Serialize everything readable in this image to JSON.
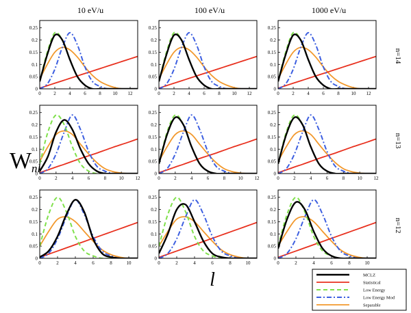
{
  "chart_data": {
    "type": "line",
    "ylabel": "W",
    "ylabel_subscript": "nl",
    "xlabel": "l",
    "columns": [
      "10 eV/u",
      "100 eV/u",
      "1000 eV/u"
    ],
    "rows": [
      "n=14",
      "n=13",
      "n=12"
    ],
    "ylim": [
      0,
      0.28
    ],
    "yticks": [
      "0",
      "0.05",
      "0.1",
      "0.15",
      "0.2",
      "0.25"
    ],
    "xlim_by_row": [
      [
        0,
        13
      ],
      [
        0,
        12
      ],
      [
        0,
        11
      ]
    ],
    "xticks_by_row": [
      [
        "0",
        "2",
        "4",
        "6",
        "8",
        "10",
        "12"
      ],
      [
        "0",
        "2",
        "4",
        "6",
        "8",
        "10",
        "12"
      ],
      [
        "0",
        "2",
        "4",
        "6",
        "8",
        "10"
      ]
    ],
    "legend": [
      "MCLZ",
      "Statistical",
      "Low Energy",
      "Low Energy Mod",
      "Separable"
    ],
    "series_colors": {
      "MCLZ": "#000000",
      "Statistical": "#e8301e",
      "Low Energy": "#7fe04b",
      "Low Energy Mod": "#3d5fe0",
      "Separable": "#f2982c"
    },
    "panels": [
      {
        "row": "n=14",
        "column": "10 eV/u",
        "MCLZ": [
          0.03,
          0.14,
          0.22,
          0.2,
          0.12,
          0.05,
          0.015,
          0,
          0,
          0,
          0,
          0,
          0,
          0
        ],
        "Statistical": [
          0.003,
          0.013,
          0.023,
          0.033,
          0.043,
          0.053,
          0.063,
          0.073,
          0.083,
          0.093,
          0.103,
          0.113,
          0.123,
          0.133
        ],
        "Low Energy": [
          0.03,
          0.15,
          0.23,
          0.2,
          0.12,
          0.05,
          0.015,
          0,
          0,
          0,
          0,
          0,
          0,
          0
        ],
        "Low Energy Mod": [
          0,
          0.02,
          0.08,
          0.17,
          0.23,
          0.18,
          0.09,
          0.03,
          0.01,
          0,
          0,
          0,
          0,
          0
        ],
        "Separable": [
          0.04,
          0.1,
          0.15,
          0.17,
          0.16,
          0.13,
          0.09,
          0.055,
          0.03,
          0.015,
          0.005,
          0,
          0,
          0
        ]
      },
      {
        "row": "n=14",
        "column": "100 eV/u",
        "MCLZ": [
          0.03,
          0.14,
          0.22,
          0.2,
          0.12,
          0.05,
          0.015,
          0,
          0,
          0,
          0,
          0,
          0,
          0
        ],
        "Statistical": [
          0.003,
          0.013,
          0.023,
          0.033,
          0.043,
          0.053,
          0.063,
          0.073,
          0.083,
          0.093,
          0.103,
          0.113,
          0.123,
          0.133
        ],
        "Low Energy": [
          0.03,
          0.15,
          0.23,
          0.2,
          0.12,
          0.05,
          0.015,
          0,
          0,
          0,
          0,
          0,
          0,
          0
        ],
        "Low Energy Mod": [
          0,
          0.02,
          0.08,
          0.17,
          0.23,
          0.18,
          0.09,
          0.03,
          0.01,
          0,
          0,
          0,
          0,
          0
        ],
        "Separable": [
          0.04,
          0.1,
          0.15,
          0.17,
          0.16,
          0.13,
          0.09,
          0.055,
          0.03,
          0.015,
          0.005,
          0,
          0,
          0
        ]
      },
      {
        "row": "n=14",
        "column": "1000 eV/u",
        "MCLZ": [
          0.03,
          0.14,
          0.22,
          0.2,
          0.12,
          0.05,
          0.015,
          0,
          0,
          0,
          0,
          0,
          0,
          0
        ],
        "Statistical": [
          0.003,
          0.013,
          0.023,
          0.033,
          0.043,
          0.053,
          0.063,
          0.073,
          0.083,
          0.093,
          0.103,
          0.113,
          0.123,
          0.133
        ],
        "Low Energy": [
          0.03,
          0.15,
          0.23,
          0.2,
          0.12,
          0.05,
          0.015,
          0,
          0,
          0,
          0,
          0,
          0,
          0
        ],
        "Low Energy Mod": [
          0,
          0.02,
          0.08,
          0.17,
          0.23,
          0.18,
          0.09,
          0.03,
          0.01,
          0,
          0,
          0,
          0,
          0
        ],
        "Separable": [
          0.04,
          0.1,
          0.15,
          0.17,
          0.16,
          0.13,
          0.09,
          0.055,
          0.03,
          0.015,
          0.005,
          0,
          0,
          0
        ]
      },
      {
        "row": "n=13",
        "column": "10 eV/u",
        "MCLZ": [
          0.01,
          0.07,
          0.17,
          0.22,
          0.18,
          0.1,
          0.04,
          0.01,
          0,
          0,
          0,
          0,
          0
        ],
        "Statistical": [
          0.004,
          0.015,
          0.027,
          0.038,
          0.05,
          0.062,
          0.073,
          0.084,
          0.096,
          0.108,
          0.119,
          0.13,
          0.142
        ],
        "Low Energy": [
          0.04,
          0.17,
          0.24,
          0.2,
          0.11,
          0.04,
          0.01,
          0,
          0,
          0,
          0,
          0,
          0
        ],
        "Low Energy Mod": [
          0,
          0.02,
          0.08,
          0.17,
          0.24,
          0.18,
          0.09,
          0.03,
          0.01,
          0,
          0,
          0,
          0
        ],
        "Separable": [
          0.05,
          0.11,
          0.16,
          0.175,
          0.16,
          0.12,
          0.08,
          0.045,
          0.02,
          0.008,
          0.002,
          0,
          0
        ]
      },
      {
        "row": "n=13",
        "column": "100 eV/u",
        "MCLZ": [
          0.04,
          0.16,
          0.23,
          0.2,
          0.11,
          0.04,
          0.01,
          0,
          0,
          0,
          0,
          0,
          0
        ],
        "Statistical": [
          0.004,
          0.015,
          0.027,
          0.038,
          0.05,
          0.062,
          0.073,
          0.084,
          0.096,
          0.108,
          0.119,
          0.13,
          0.142
        ],
        "Low Energy": [
          0.04,
          0.17,
          0.24,
          0.2,
          0.11,
          0.04,
          0.01,
          0,
          0,
          0,
          0,
          0,
          0
        ],
        "Low Energy Mod": [
          0,
          0.02,
          0.08,
          0.17,
          0.24,
          0.18,
          0.09,
          0.03,
          0.01,
          0,
          0,
          0,
          0
        ],
        "Separable": [
          0.05,
          0.11,
          0.16,
          0.175,
          0.16,
          0.12,
          0.08,
          0.045,
          0.02,
          0.008,
          0.002,
          0,
          0
        ]
      },
      {
        "row": "n=13",
        "column": "1000 eV/u",
        "MCLZ": [
          0.04,
          0.16,
          0.23,
          0.2,
          0.11,
          0.04,
          0.01,
          0,
          0,
          0,
          0,
          0,
          0
        ],
        "Statistical": [
          0.004,
          0.015,
          0.027,
          0.038,
          0.05,
          0.062,
          0.073,
          0.084,
          0.096,
          0.108,
          0.119,
          0.13,
          0.142
        ],
        "Low Energy": [
          0.04,
          0.17,
          0.24,
          0.2,
          0.11,
          0.04,
          0.01,
          0,
          0,
          0,
          0,
          0,
          0
        ],
        "Low Energy Mod": [
          0,
          0.02,
          0.08,
          0.17,
          0.24,
          0.18,
          0.09,
          0.03,
          0.01,
          0,
          0,
          0,
          0
        ],
        "Separable": [
          0.05,
          0.11,
          0.16,
          0.175,
          0.16,
          0.12,
          0.08,
          0.045,
          0.02,
          0.008,
          0.002,
          0,
          0
        ]
      },
      {
        "row": "n=12",
        "column": "10 eV/u",
        "MCLZ": [
          0.005,
          0.03,
          0.09,
          0.18,
          0.24,
          0.19,
          0.08,
          0.02,
          0.005,
          0,
          0,
          0
        ],
        "Statistical": [
          0.004,
          0.017,
          0.03,
          0.043,
          0.056,
          0.069,
          0.082,
          0.095,
          0.108,
          0.121,
          0.134,
          0.147
        ],
        "Low Energy": [
          0.05,
          0.18,
          0.25,
          0.19,
          0.09,
          0.03,
          0.01,
          0,
          0,
          0,
          0,
          0
        ],
        "Low Energy Mod": [
          0,
          0.02,
          0.08,
          0.17,
          0.24,
          0.18,
          0.09,
          0.03,
          0.01,
          0,
          0,
          0
        ],
        "Separable": [
          0.05,
          0.11,
          0.16,
          0.17,
          0.15,
          0.11,
          0.07,
          0.035,
          0.015,
          0.005,
          0,
          0
        ]
      },
      {
        "row": "n=12",
        "column": "100 eV/u",
        "MCLZ": [
          0.02,
          0.1,
          0.2,
          0.22,
          0.15,
          0.07,
          0.02,
          0.005,
          0,
          0,
          0,
          0
        ],
        "Statistical": [
          0.004,
          0.017,
          0.03,
          0.043,
          0.056,
          0.069,
          0.082,
          0.095,
          0.108,
          0.121,
          0.134,
          0.147
        ],
        "Low Energy": [
          0.05,
          0.18,
          0.25,
          0.19,
          0.09,
          0.03,
          0.01,
          0,
          0,
          0,
          0,
          0
        ],
        "Low Energy Mod": [
          0,
          0.02,
          0.08,
          0.17,
          0.24,
          0.18,
          0.09,
          0.03,
          0.01,
          0,
          0,
          0
        ],
        "Separable": [
          0.05,
          0.11,
          0.16,
          0.17,
          0.15,
          0.11,
          0.07,
          0.035,
          0.015,
          0.005,
          0,
          0
        ]
      },
      {
        "row": "n=12",
        "column": "1000 eV/u",
        "MCLZ": [
          0.04,
          0.16,
          0.23,
          0.2,
          0.11,
          0.04,
          0.01,
          0,
          0,
          0,
          0,
          0
        ],
        "Statistical": [
          0.004,
          0.017,
          0.03,
          0.043,
          0.056,
          0.069,
          0.082,
          0.095,
          0.108,
          0.121,
          0.134,
          0.147
        ],
        "Low Energy": [
          0.05,
          0.18,
          0.25,
          0.19,
          0.09,
          0.03,
          0.01,
          0,
          0,
          0,
          0,
          0
        ],
        "Low Energy Mod": [
          0,
          0.02,
          0.08,
          0.17,
          0.24,
          0.18,
          0.09,
          0.03,
          0.01,
          0,
          0,
          0
        ],
        "Separable": [
          0.05,
          0.11,
          0.16,
          0.17,
          0.15,
          0.11,
          0.07,
          0.035,
          0.015,
          0.005,
          0,
          0
        ]
      }
    ]
  }
}
